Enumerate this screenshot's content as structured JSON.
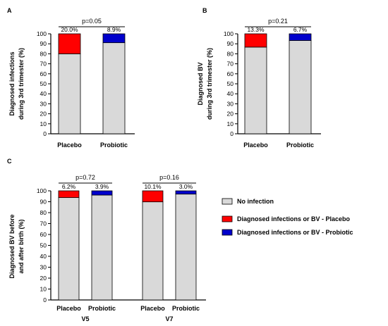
{
  "colors": {
    "no_infection": "#d9d9d9",
    "placebo": "#ff0000",
    "probiotic": "#0000cc",
    "axis": "#000000"
  },
  "chart_data": [
    {
      "panel": "A",
      "type": "bar",
      "stacked": true,
      "categories": [
        "Placebo",
        "Probiotic"
      ],
      "series": [
        {
          "values": [
            80.0,
            91.1
          ],
          "color": "#d9d9d9"
        },
        {
          "values": [
            20.0,
            8.9
          ],
          "colors": [
            "#ff0000",
            "#0000cc"
          ]
        }
      ],
      "data_labels": [
        "20.0%",
        "8.9%"
      ],
      "pvalue": "p=0.05",
      "ylabel_lines": [
        "Diagnosed infections",
        "during 3rd trimester (%)"
      ],
      "ylim": [
        0,
        100
      ],
      "yticks": [
        0,
        10,
        20,
        30,
        40,
        50,
        60,
        70,
        80,
        90,
        100
      ]
    },
    {
      "panel": "B",
      "type": "bar",
      "stacked": true,
      "categories": [
        "Placebo",
        "Probiotic"
      ],
      "series": [
        {
          "values": [
            86.7,
            93.3
          ],
          "color": "#d9d9d9"
        },
        {
          "values": [
            13.3,
            6.7
          ],
          "colors": [
            "#ff0000",
            "#0000cc"
          ]
        }
      ],
      "data_labels": [
        "13.3%",
        "6.7%"
      ],
      "pvalue": "p=0.21",
      "ylabel_lines": [
        "Diagnosed BV",
        "during 3rd trimester (%)"
      ],
      "ylim": [
        0,
        100
      ],
      "yticks": [
        0,
        10,
        20,
        30,
        40,
        50,
        60,
        70,
        80,
        90,
        100
      ]
    },
    {
      "panel": "C",
      "type": "bar",
      "stacked": true,
      "categories": [
        "Placebo",
        "Probiotic",
        "Placebo",
        "Probiotic"
      ],
      "groups": [
        "V5",
        "V7"
      ],
      "series": [
        {
          "values": [
            93.8,
            96.1,
            89.9,
            97.0
          ],
          "color": "#d9d9d9"
        },
        {
          "values": [
            6.2,
            3.9,
            10.1,
            3.0
          ],
          "colors": [
            "#ff0000",
            "#0000cc",
            "#ff0000",
            "#0000cc"
          ]
        }
      ],
      "data_labels": [
        "6.2%",
        "3.9%",
        "10.1%",
        "3.0%"
      ],
      "pvalues": [
        "p=0.72",
        "p=0.16"
      ],
      "ylabel_lines": [
        "Diagnosed BV before",
        "and after birth (%)"
      ],
      "ylim": [
        0,
        100
      ],
      "yticks": [
        0,
        10,
        20,
        30,
        40,
        50,
        60,
        70,
        80,
        90,
        100
      ]
    }
  ],
  "legend": {
    "placement": "right",
    "items": [
      {
        "label": "No infection",
        "color": "#d9d9d9"
      },
      {
        "label": "Diagnosed infections or BV -  Placebo",
        "color": "#ff0000"
      },
      {
        "label": "Diagnosed infections or BV -  Probiotic",
        "color": "#0000cc"
      }
    ]
  }
}
